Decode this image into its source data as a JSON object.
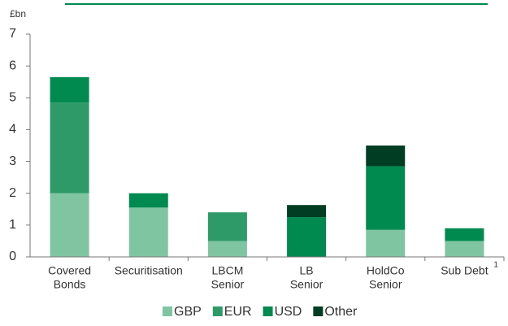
{
  "chart_data": {
    "type": "bar",
    "stacked": true,
    "y_label": "£bn",
    "categories": [
      [
        "Covered",
        "Bonds"
      ],
      [
        "Securitisation"
      ],
      [
        "LBCM",
        "Senior"
      ],
      [
        "LB",
        "Senior"
      ],
      [
        "HoldCo",
        "Senior"
      ],
      [
        "Sub Debt"
      ]
    ],
    "annotations": [
      {
        "category": 5,
        "text": "1"
      }
    ],
    "series": [
      {
        "name": "GBP",
        "color": "#80c5a2",
        "values": [
          2.0,
          1.55,
          0.5,
          0,
          0.85,
          0.5
        ]
      },
      {
        "name": "EUR",
        "color": "#2e9a68",
        "values": [
          2.85,
          0,
          0.9,
          0,
          0,
          0
        ]
      },
      {
        "name": "USD",
        "color": "#008a50",
        "values": [
          0.8,
          0.45,
          0,
          1.25,
          2.0,
          0.4
        ]
      },
      {
        "name": "Other",
        "color": "#003d23",
        "values": [
          0,
          0,
          0,
          0.38,
          0.65,
          0
        ]
      }
    ],
    "ylim": [
      0,
      7
    ],
    "yticks": [
      0,
      1,
      2,
      3,
      4,
      5,
      6,
      7
    ],
    "legend": "bottom"
  }
}
